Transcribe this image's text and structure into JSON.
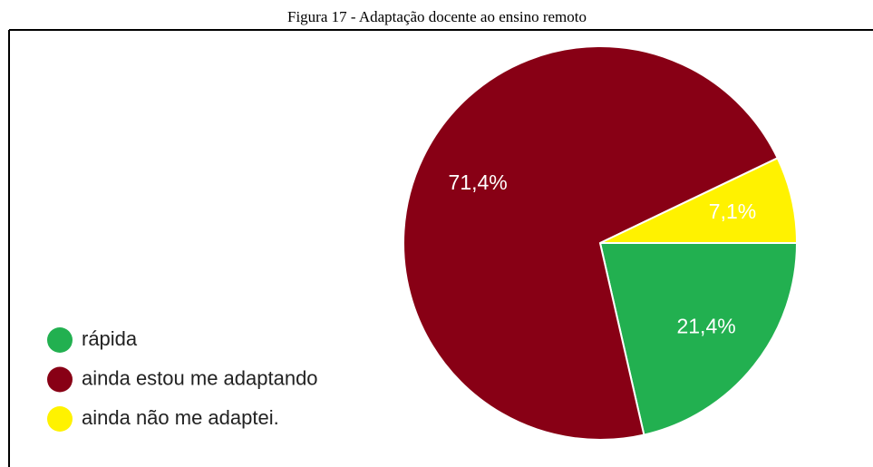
{
  "chart_data": {
    "type": "pie",
    "title": "Figura 17 - Adaptação docente ao ensino remoto",
    "categories": [
      "rápida",
      "ainda estou me adaptando",
      "ainda não me adaptei."
    ],
    "values": [
      21.4,
      71.4,
      7.1
    ],
    "value_labels": [
      "21,4%",
      "71,4%",
      "7,1%"
    ],
    "colors": [
      "#22b050",
      "#880015",
      "#fff200"
    ],
    "legend": "left"
  }
}
